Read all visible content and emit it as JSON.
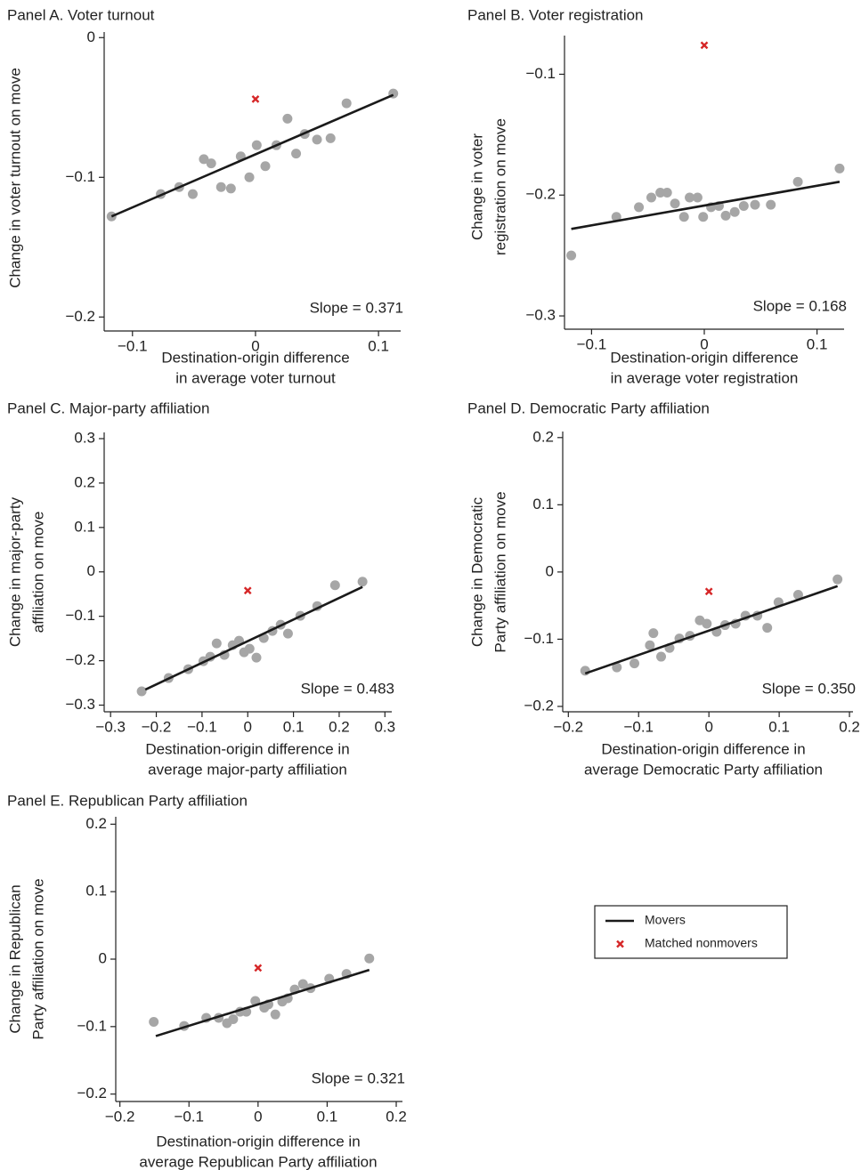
{
  "chart_data": [
    {
      "type": "scatter",
      "title": "Panel A. Voter turnout",
      "xlabel": [
        "Destination-origin difference",
        "in average voter turnout"
      ],
      "ylabel": [
        "Change in voter turnout on move"
      ],
      "xlim": [
        -0.123,
        0.118
      ],
      "ylim": [
        -0.21,
        0.004
      ],
      "xticks": [
        {
          "value": -0.1,
          "label": "−0.1"
        },
        0,
        0.1
      ],
      "yticks": [
        0,
        {
          "value": -0.1,
          "label": "−0.1"
        },
        {
          "value": -0.2,
          "label": "−0.2"
        }
      ],
      "points": {
        "color": "#a6a6a6",
        "x": [
          -0.117,
          -0.077,
          -0.062,
          -0.051,
          -0.042,
          -0.036,
          -0.028,
          -0.02,
          -0.012,
          -0.005,
          0.001,
          0.008,
          0.017,
          0.026,
          0.033,
          0.04,
          0.05,
          0.061,
          0.074,
          0.112
        ],
        "y": [
          -0.128,
          -0.112,
          -0.107,
          -0.112,
          -0.087,
          -0.09,
          -0.107,
          -0.108,
          -0.085,
          -0.1,
          -0.077,
          -0.092,
          -0.077,
          -0.058,
          -0.083,
          -0.069,
          -0.073,
          -0.072,
          -0.047,
          -0.04
        ]
      },
      "fit": {
        "color": "#1a1a1a",
        "x": [
          -0.117,
          0.112
        ],
        "y": [
          -0.128,
          -0.041
        ]
      },
      "nonmover": {
        "color": "#d62728",
        "x": [
          0
        ],
        "y": [
          -0.044
        ]
      },
      "annotation": "Slope = 0.371"
    },
    {
      "type": "scatter",
      "title": "Panel B. Voter registration",
      "xlabel": [
        "Destination-origin difference",
        "in average voter registration"
      ],
      "ylabel": [
        "Change in voter",
        "registration on move"
      ],
      "xlim": [
        -0.124,
        0.124
      ],
      "ylim": [
        -0.311,
        -0.068
      ],
      "xticks": [
        {
          "value": -0.1,
          "label": "−0.1"
        },
        0,
        0.1
      ],
      "yticks": [
        {
          "value": -0.1,
          "label": "−0.1"
        },
        {
          "value": -0.2,
          "label": "−0.2"
        },
        {
          "value": -0.3,
          "label": "−0.3"
        }
      ],
      "points": {
        "color": "#a6a6a6",
        "x": [
          -0.118,
          -0.078,
          -0.058,
          -0.047,
          -0.039,
          -0.033,
          -0.026,
          -0.018,
          -0.013,
          -0.006,
          -0.001,
          0.006,
          0.013,
          0.019,
          0.027,
          0.035,
          0.045,
          0.059,
          0.083,
          0.12
        ],
        "y": [
          -0.25,
          -0.218,
          -0.21,
          -0.202,
          -0.198,
          -0.198,
          -0.207,
          -0.218,
          -0.202,
          -0.202,
          -0.218,
          -0.21,
          -0.209,
          -0.217,
          -0.214,
          -0.209,
          -0.208,
          -0.208,
          -0.189,
          -0.178
        ]
      },
      "fit": {
        "color": "#1a1a1a",
        "x": [
          -0.118,
          0.12
        ],
        "y": [
          -0.228,
          -0.189
        ]
      },
      "nonmover": {
        "color": "#d62728",
        "x": [
          0
        ],
        "y": [
          -0.076
        ]
      },
      "annotation": "Slope = 0.168"
    },
    {
      "type": "scatter",
      "title": "Panel C. Major-party affiliation",
      "xlabel": [
        "Destination-origin difference in",
        "average major-party affiliation"
      ],
      "ylabel": [
        "Change in major-party",
        "affiliation on move"
      ],
      "xlim": [
        -0.314,
        0.315
      ],
      "ylim": [
        -0.315,
        0.314
      ],
      "xticks": [
        {
          "value": -0.3,
          "label": "−0.3"
        },
        {
          "value": -0.2,
          "label": "−0.2"
        },
        {
          "value": -0.1,
          "label": "−0.1"
        },
        0,
        0.1,
        0.2,
        0.3
      ],
      "yticks": [
        0.3,
        0.2,
        0.1,
        0,
        {
          "value": -0.1,
          "label": "−0.1"
        },
        {
          "value": -0.2,
          "label": "−0.2"
        },
        {
          "value": -0.3,
          "label": "−0.3"
        }
      ],
      "points": {
        "color": "#a6a6a6",
        "x": [
          -0.232,
          -0.173,
          -0.13,
          -0.097,
          -0.082,
          -0.068,
          -0.051,
          -0.033,
          -0.019,
          -0.008,
          0.004,
          0.019,
          0.035,
          0.054,
          0.072,
          0.088,
          0.115,
          0.152,
          0.191,
          0.251
        ],
        "y": [
          -0.269,
          -0.239,
          -0.219,
          -0.201,
          -0.191,
          -0.161,
          -0.187,
          -0.165,
          -0.155,
          -0.181,
          -0.173,
          -0.193,
          -0.149,
          -0.133,
          -0.119,
          -0.139,
          -0.099,
          -0.077,
          -0.03,
          -0.022
        ]
      },
      "fit": {
        "color": "#1a1a1a",
        "x": [
          -0.224,
          0.251
        ],
        "y": [
          -0.265,
          -0.034
        ]
      },
      "nonmover": {
        "color": "#d62728",
        "x": [
          0
        ],
        "y": [
          -0.042
        ]
      },
      "annotation": "Slope = 0.483"
    },
    {
      "type": "scatter",
      "title": "Panel D. Democratic Party affiliation",
      "xlabel": [
        "Destination-origin difference in",
        "average Democratic Party affiliation"
      ],
      "ylabel": [
        "Change in Democratic",
        "Party affiliation on move"
      ],
      "xlim": [
        -0.208,
        0.205
      ],
      "ylim": [
        -0.208,
        0.209
      ],
      "xticks": [
        {
          "value": -0.2,
          "label": "−0.2"
        },
        {
          "value": -0.1,
          "label": "−0.1"
        },
        0,
        0.1,
        0.2
      ],
      "yticks": [
        0.2,
        0.1,
        0,
        {
          "value": -0.1,
          "label": "−0.1"
        },
        {
          "value": -0.2,
          "label": "−0.2"
        }
      ],
      "points": {
        "color": "#a6a6a6",
        "x": [
          -0.176,
          -0.131,
          -0.106,
          -0.084,
          -0.079,
          -0.068,
          -0.056,
          -0.042,
          -0.027,
          -0.013,
          -0.003,
          0.011,
          0.023,
          0.038,
          0.052,
          0.069,
          0.083,
          0.099,
          0.127,
          0.183
        ],
        "y": [
          -0.147,
          -0.142,
          -0.136,
          -0.109,
          -0.091,
          -0.126,
          -0.113,
          -0.099,
          -0.095,
          -0.072,
          -0.077,
          -0.089,
          -0.079,
          -0.077,
          -0.065,
          -0.065,
          -0.083,
          -0.045,
          -0.034,
          -0.011
        ]
      },
      "fit": {
        "color": "#1a1a1a",
        "x": [
          -0.176,
          0.183
        ],
        "y": [
          -0.151,
          -0.021
        ]
      },
      "nonmover": {
        "color": "#d62728",
        "x": [
          0
        ],
        "y": [
          -0.029
        ]
      },
      "annotation": "Slope = 0.350"
    },
    {
      "type": "scatter",
      "title": "Panel E. Republican Party affiliation",
      "xlabel": [
        "Destination-origin difference in",
        "average Republican Party affiliation"
      ],
      "ylabel": [
        "Change in Republican",
        "Party affiliation on move"
      ],
      "xlim": [
        -0.206,
        0.209
      ],
      "ylim": [
        -0.211,
        0.211
      ],
      "xticks": [
        {
          "value": -0.2,
          "label": "−0.2"
        },
        {
          "value": -0.1,
          "label": "−0.1"
        },
        0,
        0.1,
        0.2
      ],
      "yticks": [
        0.2,
        0.1,
        0,
        {
          "value": -0.1,
          "label": "−0.1"
        },
        {
          "value": -0.2,
          "label": "−0.2"
        }
      ],
      "points": {
        "color": "#a6a6a6",
        "x": [
          -0.151,
          -0.107,
          -0.075,
          -0.057,
          -0.045,
          -0.036,
          -0.026,
          -0.017,
          -0.004,
          0.009,
          0.015,
          0.025,
          0.035,
          0.043,
          0.053,
          0.065,
          0.076,
          0.103,
          0.128,
          0.161
        ],
        "y": [
          -0.093,
          -0.099,
          -0.087,
          -0.087,
          -0.095,
          -0.089,
          -0.078,
          -0.078,
          -0.062,
          -0.072,
          -0.067,
          -0.082,
          -0.063,
          -0.058,
          -0.045,
          -0.037,
          -0.043,
          -0.029,
          -0.022,
          0.001
        ]
      },
      "fit": {
        "color": "#1a1a1a",
        "x": [
          -0.148,
          0.161
        ],
        "y": [
          -0.114,
          -0.016
        ]
      },
      "nonmover": {
        "color": "#d62728",
        "x": [
          0
        ],
        "y": [
          -0.013
        ]
      },
      "annotation": "Slope = 0.321"
    }
  ],
  "legend": {
    "entries": [
      {
        "name": "Movers",
        "color": "#1a1a1a",
        "marker": "line"
      },
      {
        "name": "Matched nonmovers",
        "color": "#d62728",
        "marker": "x"
      }
    ]
  }
}
